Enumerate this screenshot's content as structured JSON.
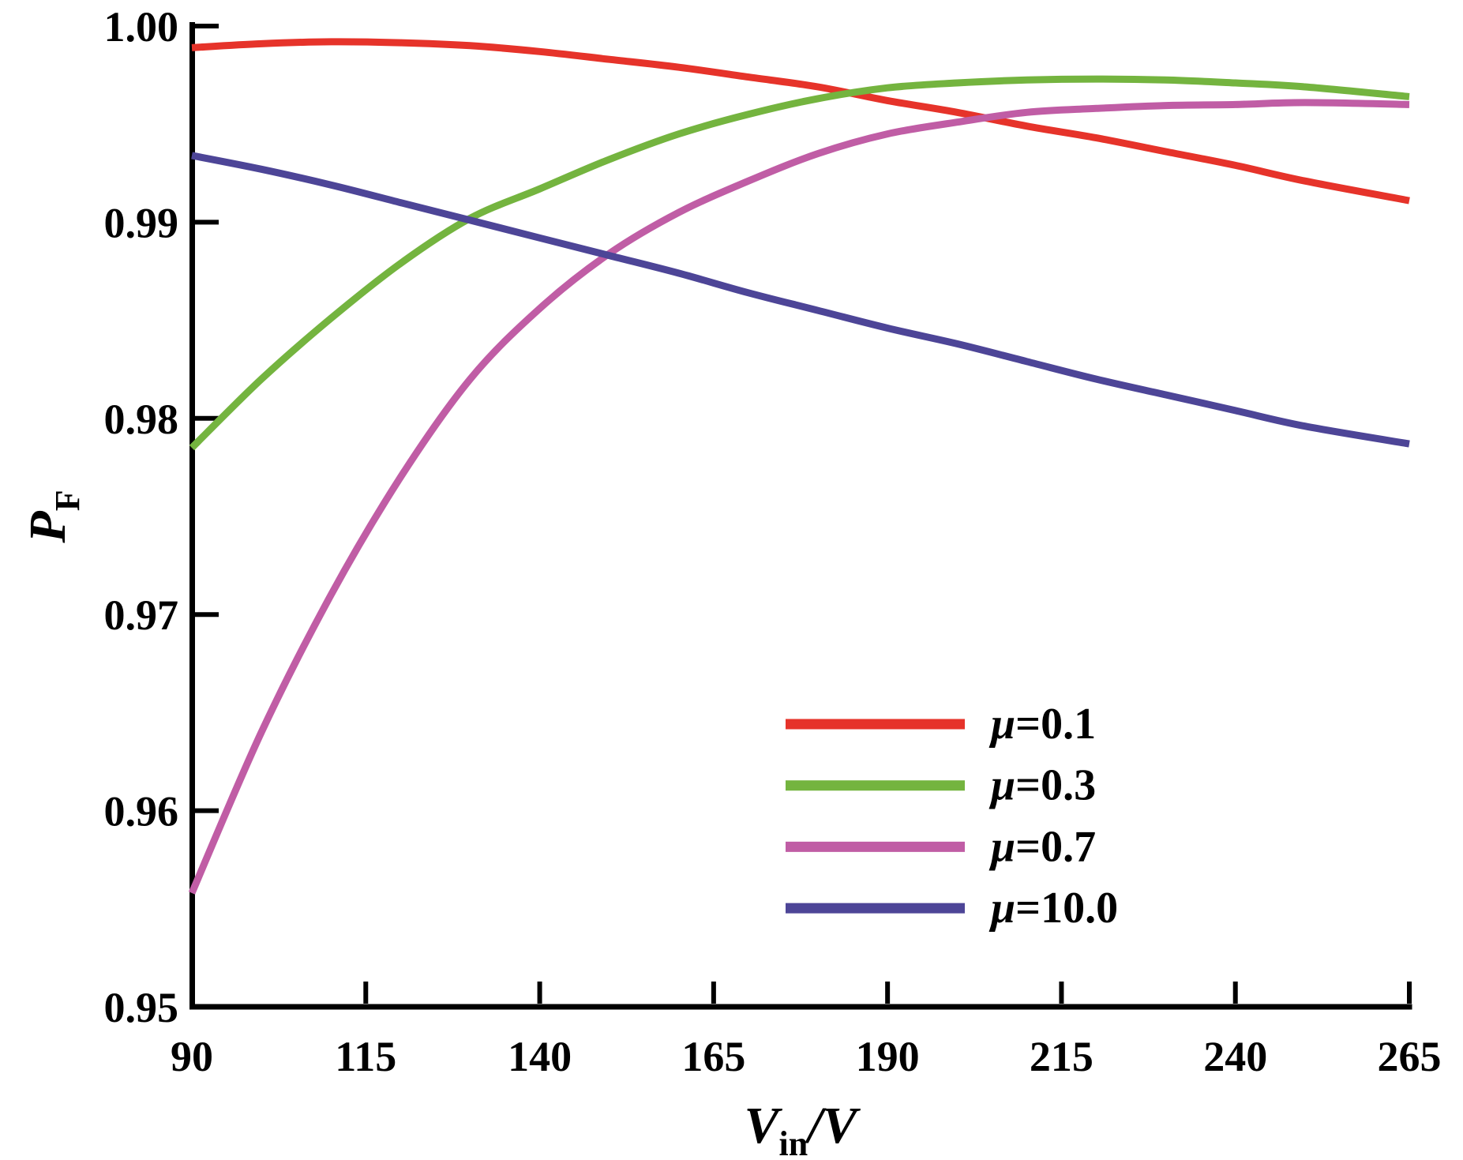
{
  "figure": {
    "background": "#ffffff",
    "axis_color": "#000000"
  },
  "axes": {
    "x_title": {
      "main": "V",
      "sub": "in",
      "rest": "/V"
    },
    "y_title": {
      "main": "P",
      "sub": "F"
    },
    "xticks": [
      {
        "v": 90,
        "label": "90"
      },
      {
        "v": 115,
        "label": "115"
      },
      {
        "v": 140,
        "label": "140"
      },
      {
        "v": 165,
        "label": "165"
      },
      {
        "v": 190,
        "label": "190"
      },
      {
        "v": 215,
        "label": "215"
      },
      {
        "v": 240,
        "label": "240"
      },
      {
        "v": 265,
        "label": "265"
      }
    ],
    "yticks": [
      {
        "v": 1.0,
        "label": "1.00"
      },
      {
        "v": 0.99,
        "label": "0.99"
      },
      {
        "v": 0.98,
        "label": "0.98"
      },
      {
        "v": 0.97,
        "label": "0.97"
      },
      {
        "v": 0.96,
        "label": "0.96"
      },
      {
        "v": 0.95,
        "label": "0.95"
      }
    ]
  },
  "chart_data": {
    "type": "line",
    "title": "",
    "xlabel": "V_in/V",
    "ylabel": "P_F",
    "xlim": [
      90,
      265
    ],
    "ylim": [
      0.95,
      1.0
    ],
    "grid": false,
    "legend_position": "lower right",
    "x": [
      90,
      100,
      110,
      120,
      130,
      140,
      150,
      160,
      170,
      180,
      190,
      200,
      210,
      220,
      230,
      240,
      250,
      265
    ],
    "series": [
      {
        "name": "μ=0.1",
        "color": "#e6332a",
        "values": [
          0.9989,
          0.9991,
          0.9992,
          0.99915,
          0.999,
          0.9987,
          0.9983,
          0.9979,
          0.9974,
          0.9969,
          0.9962,
          0.9956,
          0.9949,
          0.9943,
          0.9936,
          0.9929,
          0.9921,
          0.9911
        ]
      },
      {
        "name": "μ=0.3",
        "color": "#74b43f",
        "values": [
          0.9785,
          0.982,
          0.9851,
          0.9879,
          0.9902,
          0.9917,
          0.9932,
          0.9945,
          0.9955,
          0.9963,
          0.99685,
          0.9971,
          0.99725,
          0.9973,
          0.99725,
          0.9971,
          0.9969,
          0.9964
        ]
      },
      {
        "name": "μ=0.7",
        "color": "#c05da5",
        "values": [
          0.9558,
          0.964,
          0.971,
          0.977,
          0.982,
          0.9856,
          0.9884,
          0.9905,
          0.9921,
          0.9935,
          0.9945,
          0.9951,
          0.9956,
          0.9958,
          0.99595,
          0.996,
          0.9961,
          0.996
        ]
      },
      {
        "name": "μ=10.0",
        "color": "#4d4597",
        "values": [
          0.9934,
          0.9927,
          0.9919,
          0.991,
          0.9901,
          0.9892,
          0.9883,
          0.9874,
          0.9864,
          0.9855,
          0.9846,
          0.9838,
          0.9829,
          0.982,
          0.9812,
          0.9804,
          0.9796,
          0.9787
        ]
      }
    ]
  }
}
